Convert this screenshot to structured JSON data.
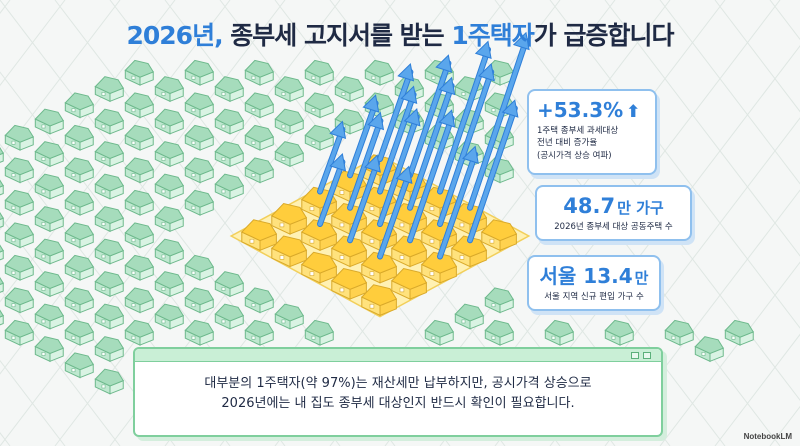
{
  "title": {
    "part1": "2026년,",
    "part2": " 종부세 고지서를 받는 ",
    "part3": "1주택자",
    "part4": "가 급증합니다"
  },
  "stats": [
    {
      "value": "+53.3%",
      "desc_lines": [
        "1주택 종부세 과세대상",
        "전년 대비 증가율",
        "(공시가격 상승 여파)"
      ]
    },
    {
      "value": "48.7",
      "unit": "만 가구",
      "desc": "2026년 종부세 대상 공동주택 수"
    },
    {
      "value": "서울 13.4",
      "unit": "만",
      "desc": "서울 지역 신규 편입 가구 수"
    }
  ],
  "note": {
    "line1": "대부분의 1주택자(약 97%)는 재산세만 납부하지만, 공시가격 상승으로",
    "line2": "2026년에는 내 집도 종부세 대상인지 반드시 확인이 필요합니다."
  },
  "brand": "NotebookLM",
  "colors": {
    "accent": "#2f7fd8",
    "green_house": "#bfe8d0",
    "yellow_house": "#ffd75e",
    "arrow": "#5aa6ec"
  }
}
